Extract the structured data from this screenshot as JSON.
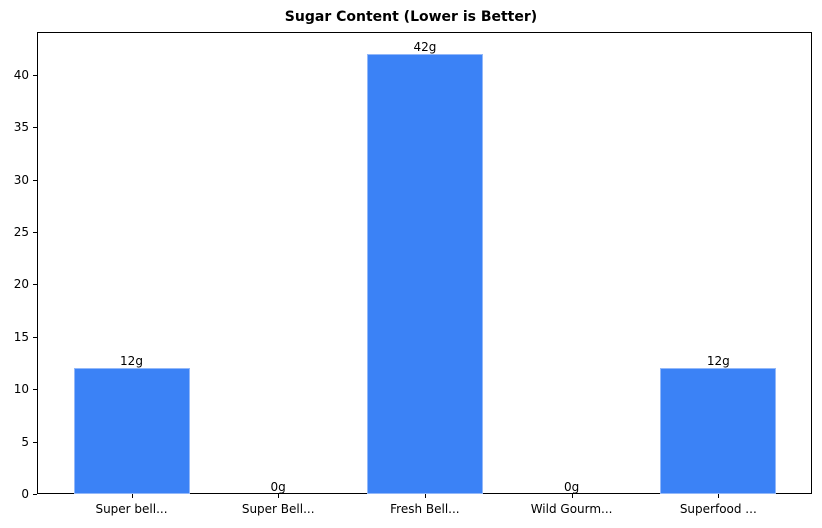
{
  "chart_data": {
    "type": "bar",
    "title": "Sugar Content (Lower is Better)",
    "xlabel": "",
    "ylabel": "",
    "categories": [
      "Super bell...",
      "Super Bell...",
      "Fresh Bell...",
      "Wild Gourm...",
      "Superfood ..."
    ],
    "values": [
      12,
      0,
      42,
      0,
      12
    ],
    "value_labels": [
      "12g",
      "0g",
      "42g",
      "0g",
      "12g"
    ],
    "ylim": [
      0,
      44.1
    ],
    "yticks": [
      0,
      5,
      10,
      15,
      20,
      25,
      30,
      35,
      40
    ],
    "ytick_labels": [
      "0",
      "5",
      "10",
      "15",
      "20",
      "25",
      "30",
      "35",
      "40"
    ],
    "grid": false,
    "legend": null,
    "bar_color": "#3b82f6",
    "bar_edge_color": "#93b8f9"
  }
}
